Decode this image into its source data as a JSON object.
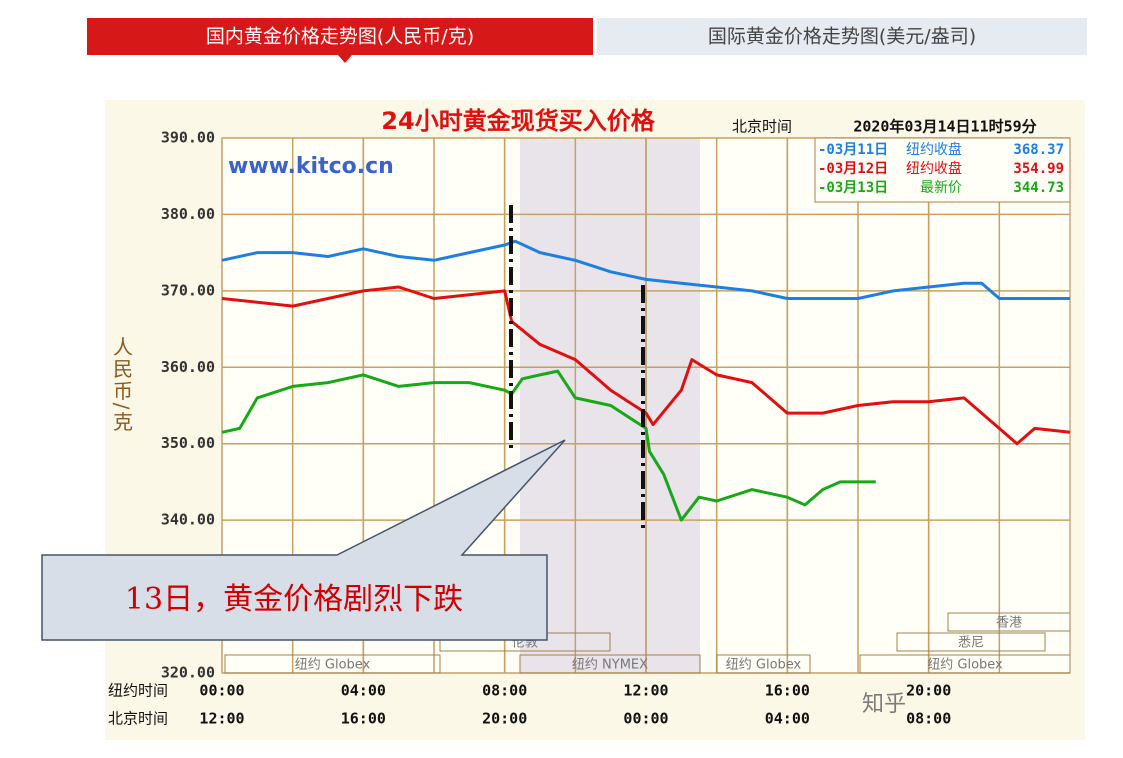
{
  "tabs": [
    "国内黄金价格走势图(人民币/克)",
    "国际黄金价格走势图(美元/盎司)"
  ],
  "callout": "13日，黄金价格剧烈下跌",
  "watermark": "知乎",
  "chart_data": {
    "type": "line",
    "title": "24小时黄金现货买入价格",
    "time_zone": "北京时间",
    "timestamp": "2020年03月14日11时59分",
    "source": "www.kitco.cn",
    "y_label": "人民币/克",
    "x_row_labels": [
      "纽约时间",
      "北京时间"
    ],
    "xlim": [
      0,
      24
    ],
    "xticks": [
      {
        "value": 0,
        "label": "00:00"
      },
      {
        "value": 4,
        "label": "04:00"
      },
      {
        "value": 8,
        "label": "08:00"
      },
      {
        "value": 12,
        "label": "12:00"
      },
      {
        "value": 16,
        "label": "16:00"
      },
      {
        "value": 20,
        "label": "20:00"
      }
    ],
    "xticks_beijing": [
      {
        "value": 0,
        "label": "12:00"
      },
      {
        "value": 4,
        "label": "16:00"
      },
      {
        "value": 8,
        "label": "20:00"
      },
      {
        "value": 12,
        "label": "00:00"
      },
      {
        "value": 16,
        "label": "04:00"
      },
      {
        "value": 20,
        "label": "08:00"
      }
    ],
    "ylim": [
      320,
      390
    ],
    "yticks": [
      {
        "value": 320,
        "label": "320.00"
      },
      {
        "value": 340,
        "label": "340.00"
      },
      {
        "value": 350,
        "label": "350.00"
      },
      {
        "value": 360,
        "label": "360.00"
      },
      {
        "value": 370,
        "label": "370.00"
      },
      {
        "value": 380,
        "label": "380.00"
      },
      {
        "value": 390,
        "label": "390.00"
      }
    ],
    "grid": true,
    "sessions": [
      "纽约 Globex",
      "伦敦",
      "纽约 NYMEX",
      "纽约 Globex",
      "香港",
      "悉尼",
      "纽约 Globex"
    ],
    "series": [
      {
        "name": "-03月11日",
        "note": "纽约收盘",
        "latest": 368.37,
        "color": "#1e7fe0",
        "x": [
          0,
          1,
          2,
          3,
          4,
          5,
          6,
          7,
          8,
          8.3,
          9,
          10,
          11,
          12,
          13,
          14,
          15,
          16,
          17,
          18,
          19,
          20,
          21,
          21.5,
          22,
          23,
          24
        ],
        "values": [
          374,
          375,
          375,
          374.5,
          375.5,
          374.5,
          374,
          375,
          376,
          376.5,
          375,
          374,
          372.5,
          371.5,
          371,
          370.5,
          370,
          369,
          369,
          369,
          370,
          370.5,
          371,
          371,
          369,
          369,
          369
        ]
      },
      {
        "name": "-03月12日",
        "note": "纽约收盘",
        "latest": 354.99,
        "color": "#e01010",
        "x": [
          0,
          1,
          2,
          3,
          4,
          5,
          6,
          7,
          8,
          8.2,
          9,
          10,
          11,
          12,
          12.2,
          13,
          13.3,
          14,
          15,
          16,
          17,
          18,
          19,
          20,
          21,
          22,
          22.5,
          23,
          24
        ],
        "values": [
          369,
          368.5,
          368,
          369,
          370,
          370.5,
          369,
          369.5,
          370,
          366,
          363,
          361,
          357,
          354,
          352.5,
          357,
          361,
          359,
          358,
          354,
          354,
          355,
          355.5,
          355.5,
          356,
          352,
          350,
          352,
          351.5
        ]
      },
      {
        "name": "-03月13日",
        "note": "最新价",
        "latest": 344.73,
        "color": "#18a818",
        "x": [
          0,
          0.5,
          1,
          2,
          3,
          4,
          5,
          6,
          7,
          8,
          8.2,
          8.5,
          9,
          9.5,
          10,
          11,
          12,
          12.1,
          12.5,
          13,
          13.5,
          14,
          15,
          16,
          16.5,
          17,
          17.5,
          18,
          18.5
        ],
        "values": [
          351.5,
          352,
          356,
          357.5,
          358,
          359,
          357.5,
          358,
          358,
          357,
          356.5,
          358.5,
          359,
          359.5,
          356,
          355,
          352,
          349,
          346,
          340,
          343,
          342.5,
          344,
          343,
          342,
          344,
          345,
          345,
          345
        ]
      }
    ]
  }
}
